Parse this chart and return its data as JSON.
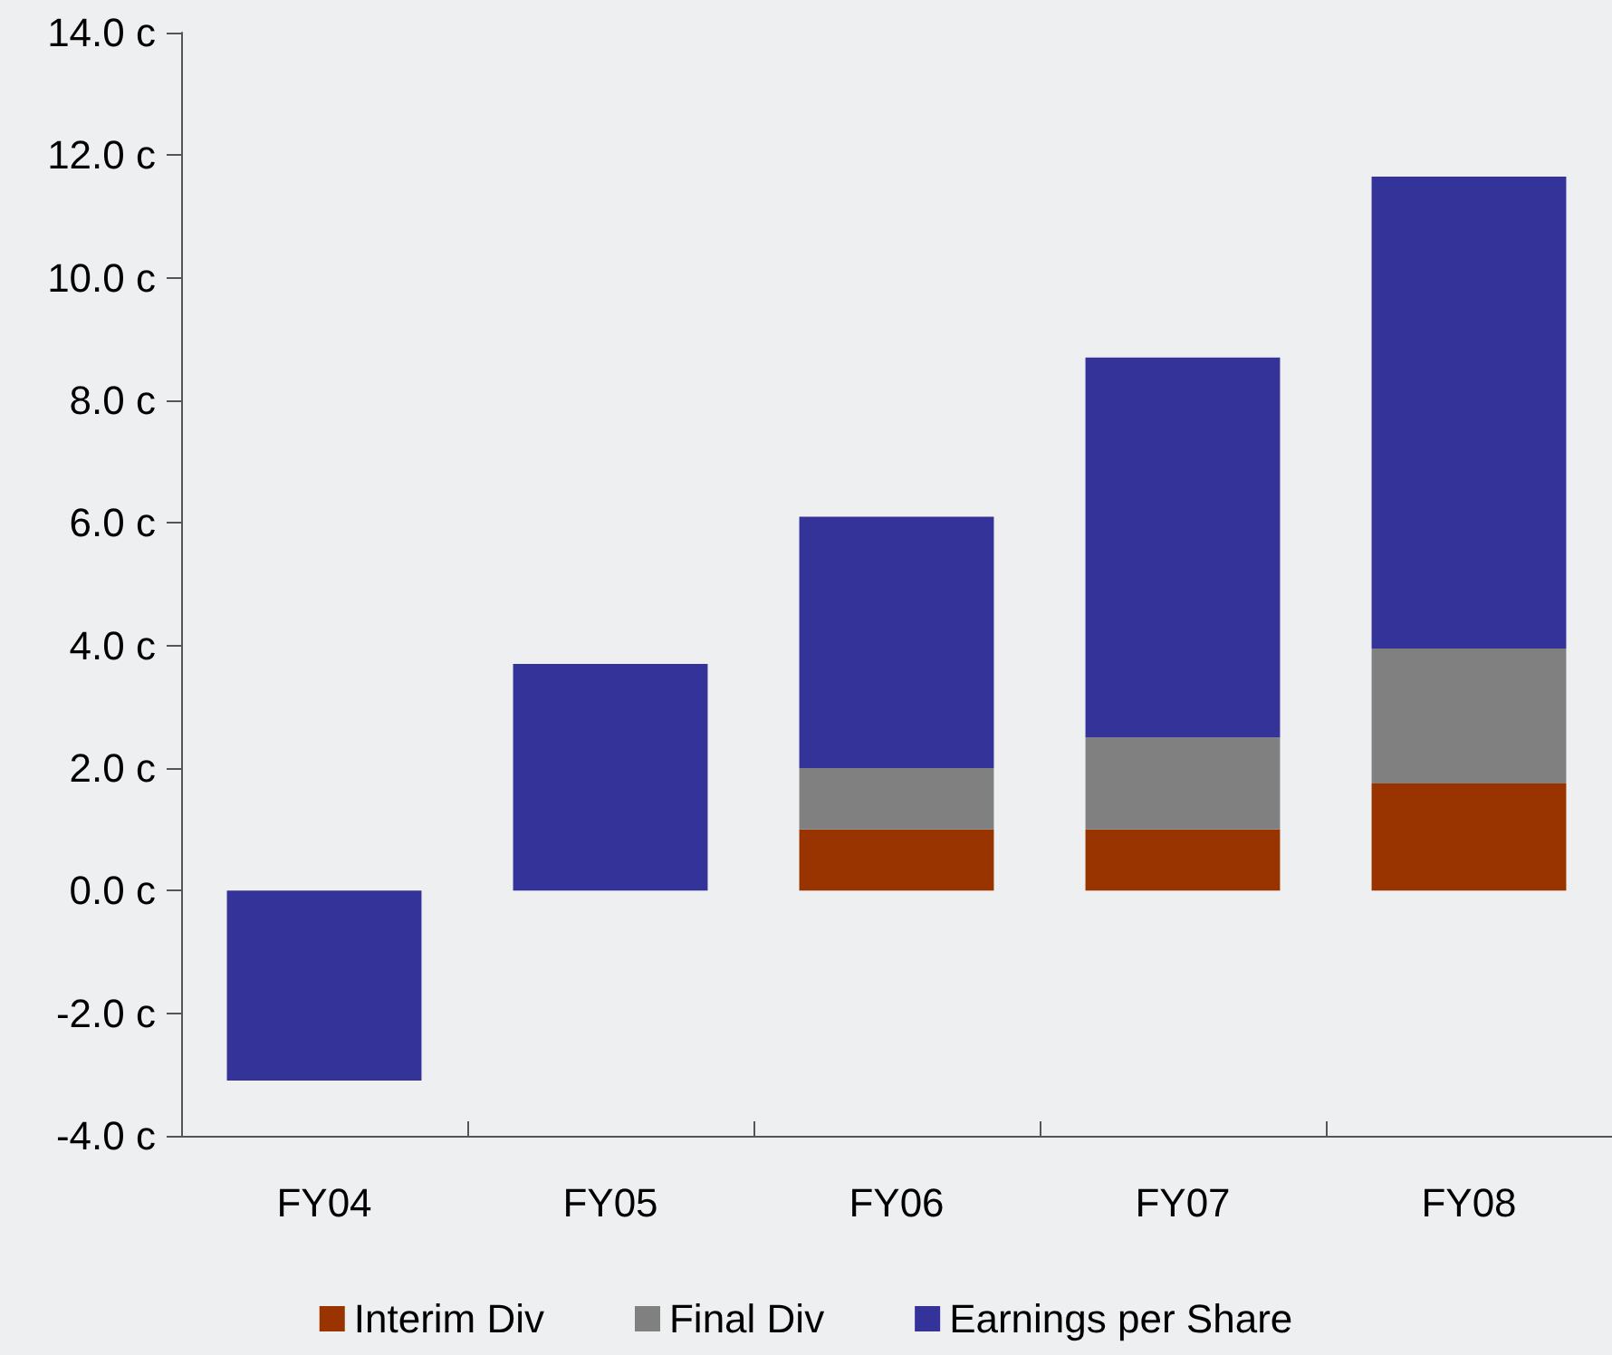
{
  "chart_data": {
    "type": "bar",
    "stacked": true,
    "categories": [
      "FY04",
      "FY05",
      "FY06",
      "FY07",
      "FY08"
    ],
    "series": [
      {
        "name": "Interim Div",
        "color": "#993300",
        "values": [
          null,
          null,
          1.0,
          1.0,
          1.75
        ]
      },
      {
        "name": "Final Div",
        "color": "#808080",
        "values": [
          null,
          null,
          1.0,
          1.5,
          2.2
        ]
      },
      {
        "name": "Earnings per Share",
        "color": "#333399",
        "values": [
          -3.1,
          3.7,
          4.1,
          6.2,
          7.7
        ]
      }
    ],
    "ylim": [
      -4,
      14
    ],
    "yticks": [
      {
        "value": -4,
        "label": "-4.0 c"
      },
      {
        "value": -2,
        "label": "-2.0 c"
      },
      {
        "value": 0,
        "label": "0.0 c"
      },
      {
        "value": 2,
        "label": "2.0 c"
      },
      {
        "value": 4,
        "label": "4.0 c"
      },
      {
        "value": 6,
        "label": "6.0 c"
      },
      {
        "value": 8,
        "label": "8.0 c"
      },
      {
        "value": 10,
        "label": "10.0 c"
      },
      {
        "value": 12,
        "label": "12.0 c"
      },
      {
        "value": 14,
        "label": "14.0 c"
      }
    ],
    "grid": false,
    "legend": "bottom"
  }
}
